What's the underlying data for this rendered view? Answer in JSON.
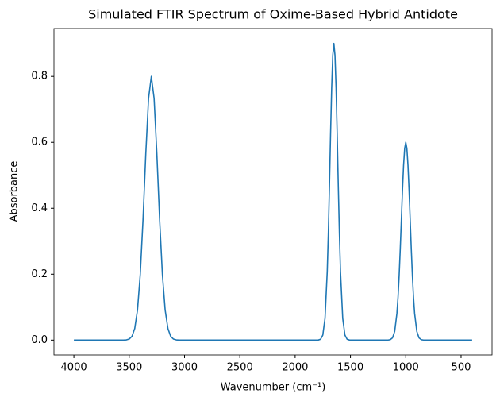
{
  "chart_data": {
    "type": "line",
    "title": "Simulated FTIR Spectrum of Oxime-Based Hybrid Antidote",
    "x_label": "Wavenumber (cm⁻¹)",
    "y_label": "Absorbance",
    "x": [
      4000,
      3550,
      3525,
      3500,
      3475,
      3450,
      3425,
      3400,
      3375,
      3350,
      3325,
      3300,
      3275,
      3250,
      3225,
      3200,
      3175,
      3150,
      3125,
      3100,
      3075,
      3050,
      1800,
      1790,
      1770,
      1750,
      1730,
      1710,
      1700,
      1690,
      1680,
      1670,
      1660,
      1650,
      1640,
      1630,
      1620,
      1610,
      1600,
      1590,
      1570,
      1550,
      1530,
      1510,
      1160,
      1140,
      1120,
      1100,
      1080,
      1070,
      1060,
      1050,
      1040,
      1030,
      1020,
      1010,
      1000,
      990,
      980,
      970,
      960,
      950,
      940,
      930,
      920,
      900,
      880,
      860,
      840,
      400
    ],
    "series": [
      {
        "name": "Absorbance",
        "color": "#1f77b4",
        "values": [
          0,
          0.0001,
          0.0007,
          0.0031,
          0.0114,
          0.0351,
          0.0913,
          0.1995,
          0.3662,
          0.5653,
          0.7335,
          0.8,
          0.7335,
          0.5653,
          0.3662,
          0.1995,
          0.0913,
          0.0351,
          0.0114,
          0.0031,
          0.0007,
          0.0001,
          0.0001,
          0.0003,
          0.0025,
          0.0152,
          0.0661,
          0.2071,
          0.3244,
          0.4684,
          0.6234,
          0.7644,
          0.864,
          0.9,
          0.864,
          0.7644,
          0.6234,
          0.4684,
          0.3244,
          0.2071,
          0.0661,
          0.0152,
          0.0025,
          0.0003,
          0.0002,
          0.0013,
          0.0067,
          0.0263,
          0.0812,
          0.1298,
          0.1948,
          0.2747,
          0.3639,
          0.4529,
          0.5295,
          0.5815,
          0.6,
          0.5815,
          0.5295,
          0.4529,
          0.3639,
          0.2747,
          0.1948,
          0.1298,
          0.0812,
          0.0263,
          0.0067,
          0.0013,
          0.0002,
          0
        ]
      }
    ],
    "xlim": [
      4180,
      220
    ],
    "ylim": [
      -0.045,
      0.945
    ],
    "xticks": [
      4000,
      3500,
      3000,
      2500,
      2000,
      1500,
      1000,
      500
    ],
    "yticks": [
      {
        "value": 0,
        "label": "0.0"
      },
      0.2,
      0.4,
      0.6,
      0.8
    ],
    "grid": false
  }
}
